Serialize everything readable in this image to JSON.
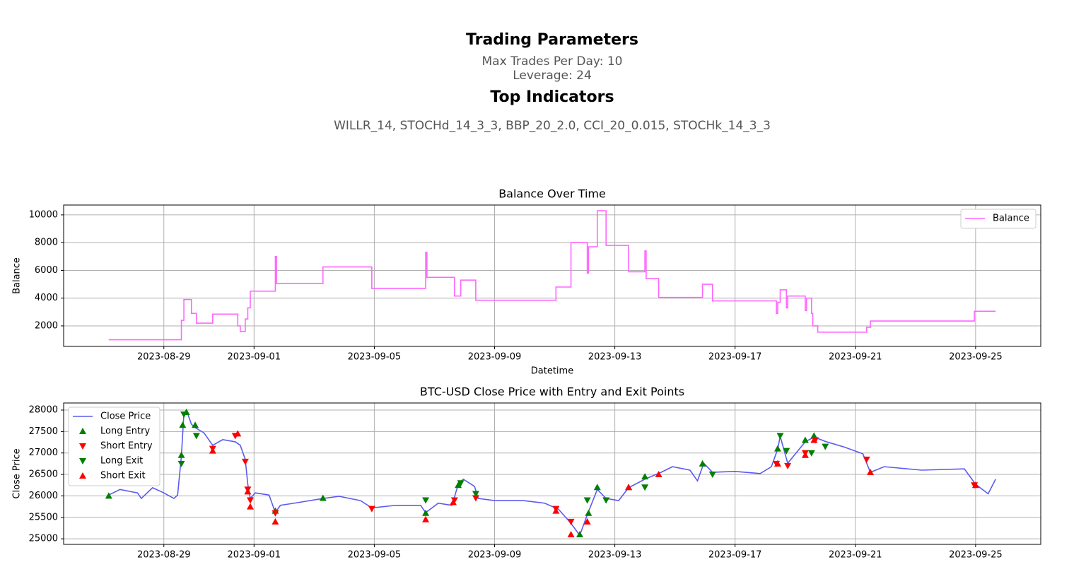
{
  "header": {
    "title": "Trading Parameters",
    "params": [
      "Max Trades Per Day: 10",
      "Leverage: 24"
    ],
    "indicators_title": "Top Indicators",
    "indicators": "WILLR_14, STOCHd_14_3_3, BBP_20_2.0, CCI_20_0.015, STOCHk_14_3_3"
  },
  "chart_data": [
    {
      "type": "line",
      "title": "Balance Over Time",
      "xlabel": "Datetime",
      "ylabel": "Balance",
      "step": "post",
      "grid": true,
      "legend": "upper right",
      "xlim": [
        "2023-08-25 16:00",
        "2023-09-27 04:00"
      ],
      "xticks": [
        "2023-08-29",
        "2023-09-01",
        "2023-09-05",
        "2023-09-09",
        "2023-09-13",
        "2023-09-17",
        "2023-09-21",
        "2023-09-25"
      ],
      "ylim": [
        520,
        10710
      ],
      "yticks": [
        2000,
        4000,
        6000,
        8000,
        10000
      ],
      "series": [
        {
          "name": "Balance",
          "color": "#ff66ff",
          "x": [
            "2023-08-27 04:00",
            "2023-08-29 14:00",
            "2023-08-29 16:00",
            "2023-08-29 22:00",
            "2023-08-30 02:00",
            "2023-08-30 15:00",
            "2023-08-31 11:00",
            "2023-08-31 13:00",
            "2023-08-31 17:00",
            "2023-08-31 19:00",
            "2023-08-31 21:00",
            "2023-09-01 17:00",
            "2023-09-01 18:00",
            "2023-09-03 07:00",
            "2023-09-04 22:00",
            "2023-09-06 17:00",
            "2023-09-06 18:00",
            "2023-09-07 16:00",
            "2023-09-07 21:00",
            "2023-09-08 09:00",
            "2023-09-11 01:00",
            "2023-09-11 13:00",
            "2023-09-12 02:00",
            "2023-09-12 03:00",
            "2023-09-12 10:00",
            "2023-09-12 17:00",
            "2023-09-13 11:00",
            "2023-09-14 00:00",
            "2023-09-14 01:00",
            "2023-09-14 11:00",
            "2023-09-15 22:00",
            "2023-09-16 06:00",
            "2023-09-18 09:00",
            "2023-09-18 10:00",
            "2023-09-18 12:00",
            "2023-09-18 17:00",
            "2023-09-18 18:00",
            "2023-09-19 08:00",
            "2023-09-19 09:00",
            "2023-09-19 13:00",
            "2023-09-19 14:00",
            "2023-09-19 18:00",
            "2023-09-21 09:00",
            "2023-09-21 12:00",
            "2023-09-24 23:00",
            "2023-09-25 16:00"
          ],
          "values": [
            1000,
            2400,
            3900,
            2900,
            2200,
            2850,
            2000,
            1600,
            2500,
            3300,
            4500,
            7000,
            5050,
            6250,
            4700,
            7300,
            5500,
            4150,
            5300,
            3850,
            4800,
            8000,
            5800,
            7700,
            10300,
            7800,
            5900,
            7400,
            5400,
            4050,
            5000,
            3800,
            2900,
            3700,
            4600,
            3300,
            4150,
            3100,
            4000,
            2900,
            2000,
            1550,
            1900,
            2350,
            3050,
            3050
          ]
        }
      ]
    },
    {
      "type": "line",
      "title": "BTC-USD Close Price with Entry and Exit Points",
      "ylabel": "Close Price",
      "grid": true,
      "legend": "upper left",
      "xlim": [
        "2023-08-25 16:00",
        "2023-09-27 04:00"
      ],
      "xticks": [
        "2023-08-29",
        "2023-09-01",
        "2023-09-05",
        "2023-09-09",
        "2023-09-13",
        "2023-09-17",
        "2023-09-21",
        "2023-09-25"
      ],
      "ylim": [
        24870,
        28165
      ],
      "yticks": [
        25000,
        25500,
        26000,
        26500,
        27000,
        27500,
        28000
      ],
      "series": [
        {
          "name": "Close Price",
          "color": "#5b5bf0",
          "x": [
            "2023-08-27 04:00",
            "2023-08-27 13:00",
            "2023-08-28 03:00",
            "2023-08-28 06:00",
            "2023-08-28 15:00",
            "2023-08-29 00:00",
            "2023-08-29 08:00",
            "2023-08-29 11:00",
            "2023-08-29 14:00",
            "2023-08-29 16:00",
            "2023-08-29 18:00",
            "2023-08-29 22:00",
            "2023-08-30 01:00",
            "2023-08-30 08:00",
            "2023-08-30 15:00",
            "2023-08-30 23:00",
            "2023-08-31 09:00",
            "2023-08-31 13:00",
            "2023-08-31 17:00",
            "2023-08-31 19:00",
            "2023-08-31 21:00",
            "2023-09-01 01:00",
            "2023-09-01 12:00",
            "2023-09-01 17:00",
            "2023-09-01 21:00",
            "2023-09-02 08:00",
            "2023-09-03 07:00",
            "2023-09-03 20:00",
            "2023-09-04 13:00",
            "2023-09-04 22:00",
            "2023-09-05 17:00",
            "2023-09-06 13:00",
            "2023-09-06 17:00",
            "2023-09-07 03:00",
            "2023-09-07 14:00",
            "2023-09-07 19:00",
            "2023-09-07 23:00",
            "2023-09-08 08:00",
            "2023-09-08 11:00",
            "2023-09-09 00:00",
            "2023-09-09 23:00",
            "2023-09-10 16:00",
            "2023-09-11 03:00",
            "2023-09-11 13:00",
            "2023-09-11 20:00",
            "2023-09-12 02:00",
            "2023-09-12 10:00",
            "2023-09-12 17:00",
            "2023-09-13 03:00",
            "2023-09-13 11:00",
            "2023-09-14 00:00",
            "2023-09-14 13:00",
            "2023-09-14 22:00",
            "2023-09-15 12:00",
            "2023-09-15 18:00",
            "2023-09-15 23:00",
            "2023-09-16 06:00",
            "2023-09-17 00:00",
            "2023-09-17 20:00",
            "2023-09-18 05:00",
            "2023-09-18 10:00",
            "2023-09-18 12:00",
            "2023-09-18 18:00",
            "2023-09-19 08:00",
            "2023-09-19 15:00",
            "2023-09-20 01:00",
            "2023-09-20 15:00",
            "2023-09-21 06:00",
            "2023-09-21 12:00",
            "2023-09-21 23:00",
            "2023-09-23 05:00",
            "2023-09-24 15:00",
            "2023-09-25 00:00",
            "2023-09-25 10:00",
            "2023-09-25 16:00"
          ],
          "values": [
            26020,
            26150,
            26070,
            25940,
            26190,
            26070,
            25940,
            26020,
            26930,
            27920,
            28000,
            27670,
            27590,
            27470,
            27180,
            27310,
            27260,
            27180,
            26850,
            26270,
            25940,
            26070,
            26020,
            25610,
            25780,
            25830,
            25940,
            25990,
            25890,
            25720,
            25780,
            25780,
            25610,
            25830,
            25780,
            26270,
            26390,
            26220,
            25940,
            25890,
            25890,
            25830,
            25690,
            25360,
            25080,
            25560,
            26150,
            25940,
            25890,
            26190,
            26390,
            26550,
            26680,
            26600,
            26350,
            26760,
            26550,
            26570,
            26520,
            26680,
            27090,
            27390,
            26760,
            27260,
            27370,
            27260,
            27140,
            26980,
            26550,
            26680,
            26600,
            26630,
            26270,
            26050,
            26390
          ]
        },
        {
          "name": "Long Entry",
          "color": "#008000",
          "marker": "^",
          "x": [
            "2023-08-27 04:00",
            "2023-08-29 14:00",
            "2023-08-29 15:00",
            "2023-08-29 18:00",
            "2023-08-30 01:00",
            "2023-09-01 17:00",
            "2023-09-03 07:00",
            "2023-09-06 17:00",
            "2023-09-07 19:00",
            "2023-09-11 20:00",
            "2023-09-12 03:00",
            "2023-09-12 10:00",
            "2023-09-13 11:00",
            "2023-09-14 00:00",
            "2023-09-15 22:00",
            "2023-09-18 10:00",
            "2023-09-19 08:00",
            "2023-09-19 15:00"
          ],
          "values": [
            26000,
            26950,
            27650,
            27950,
            27650,
            25650,
            25950,
            25600,
            26250,
            25100,
            25600,
            26200,
            26200,
            26450,
            26750,
            27100,
            27300,
            27400
          ]
        },
        {
          "name": "Short Entry",
          "color": "#ff0000",
          "marker": "v",
          "x": [
            "2023-08-30 15:00",
            "2023-08-31 09:00",
            "2023-08-31 17:00",
            "2023-08-31 19:00",
            "2023-08-31 21:00",
            "2023-09-01 17:00",
            "2023-09-04 22:00",
            "2023-09-07 16:00",
            "2023-09-08 09:00",
            "2023-09-11 01:00",
            "2023-09-11 13:00",
            "2023-09-18 09:00",
            "2023-09-18 18:00",
            "2023-09-19 08:00",
            "2023-09-19 16:00",
            "2023-09-21 09:00",
            "2023-09-24 23:00"
          ],
          "values": [
            27100,
            27400,
            26800,
            26150,
            25900,
            25600,
            25700,
            25900,
            25950,
            25700,
            25400,
            26750,
            26700,
            27000,
            27300,
            26850,
            26250
          ]
        },
        {
          "name": "Long Exit",
          "color": "#008000",
          "marker": "v",
          "x": [
            "2023-08-29 14:00",
            "2023-08-29 16:00",
            "2023-08-30 02:00",
            "2023-09-06 17:00",
            "2023-09-07 21:00",
            "2023-09-08 09:00",
            "2023-09-12 02:00",
            "2023-09-12 17:00",
            "2023-09-14 00:00",
            "2023-09-16 06:00",
            "2023-09-18 12:00",
            "2023-09-18 17:00",
            "2023-09-19 13:00",
            "2023-09-20 00:00"
          ],
          "values": [
            26750,
            27900,
            27400,
            25900,
            26300,
            26050,
            25900,
            25900,
            26200,
            26500,
            27400,
            27050,
            27000,
            27150
          ]
        },
        {
          "name": "Short Exit",
          "color": "#ff0000",
          "marker": "^",
          "x": [
            "2023-08-30 15:00",
            "2023-08-31 11:00",
            "2023-08-31 19:00",
            "2023-08-31 21:00",
            "2023-09-01 17:00",
            "2023-09-06 17:00",
            "2023-09-07 15:00",
            "2023-09-11 01:00",
            "2023-09-11 13:00",
            "2023-09-12 02:00",
            "2023-09-13 11:00",
            "2023-09-14 11:00",
            "2023-09-18 10:00",
            "2023-09-19 08:00",
            "2023-09-19 15:00",
            "2023-09-21 12:00",
            "2023-09-25 00:00"
          ],
          "values": [
            27050,
            27450,
            26100,
            25750,
            25400,
            25450,
            25850,
            25650,
            25100,
            25400,
            26200,
            26500,
            26750,
            26950,
            27300,
            26550,
            26250
          ]
        }
      ]
    }
  ]
}
